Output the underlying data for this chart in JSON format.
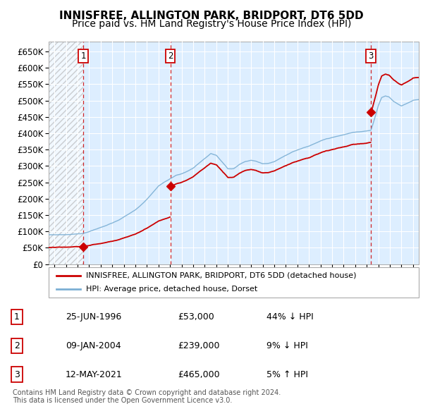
{
  "title": "INNISFREE, ALLINGTON PARK, BRIDPORT, DT6 5DD",
  "subtitle": "Price paid vs. HM Land Registry's House Price Index (HPI)",
  "ylim": [
    0,
    680000
  ],
  "yticks": [
    0,
    50000,
    100000,
    150000,
    200000,
    250000,
    300000,
    350000,
    400000,
    450000,
    500000,
    550000,
    600000,
    650000
  ],
  "xlim_start": 1993.5,
  "xlim_end": 2025.5,
  "hatch_end": 1996.487,
  "sale_dates": [
    1996.487,
    2004.027,
    2021.36
  ],
  "sale_prices": [
    53000,
    239000,
    465000
  ],
  "sale_labels": [
    "1",
    "2",
    "3"
  ],
  "legend_line1": "INNISFREE, ALLINGTON PARK, BRIDPORT, DT6 5DD (detached house)",
  "legend_line2": "HPI: Average price, detached house, Dorset",
  "annotation_rows": [
    [
      "1",
      "25-JUN-1996",
      "£53,000",
      "44% ↓ HPI"
    ],
    [
      "2",
      "09-JAN-2004",
      "£239,000",
      "9% ↓ HPI"
    ],
    [
      "3",
      "12-MAY-2021",
      "£465,000",
      "5% ↑ HPI"
    ]
  ],
  "footer": "Contains HM Land Registry data © Crown copyright and database right 2024.\nThis data is licensed under the Open Government Licence v3.0.",
  "hpi_color": "#7bafd4",
  "sale_color": "#cc0000",
  "vline_color": "#cc0000",
  "background_color": "#ddeeff",
  "grid_color": "#ffffff",
  "title_fontsize": 11,
  "subtitle_fontsize": 10,
  "axis_fontsize": 8.5
}
